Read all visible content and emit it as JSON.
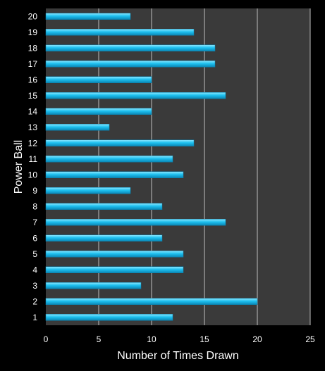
{
  "chart_data": {
    "type": "bar",
    "orientation": "horizontal",
    "title": "",
    "xlabel": "Number of Times Drawn",
    "ylabel": "Power Ball",
    "xlim": [
      0,
      25
    ],
    "xticks": [
      "0",
      "5",
      "10",
      "15",
      "20",
      "25"
    ],
    "categories": [
      "1",
      "2",
      "3",
      "4",
      "5",
      "6",
      "7",
      "8",
      "9",
      "10",
      "11",
      "12",
      "13",
      "14",
      "15",
      "16",
      "17",
      "18",
      "19",
      "20"
    ],
    "values": [
      12,
      20,
      9,
      13,
      13,
      11,
      17,
      11,
      8,
      13,
      12,
      14,
      6,
      10,
      17,
      10,
      16,
      16,
      14,
      8
    ],
    "grid": "vertical",
    "legend": "none",
    "colors": {
      "background": "#000000",
      "plot_background": "#3a3a3a",
      "gridline": "#bdbdbd",
      "bar_light": "#8ee8ff",
      "bar_mid": "#1ec0ef",
      "bar_dark": "#0a86b4",
      "bar_edge": "#0a7fab",
      "text": "#ffffff"
    }
  }
}
